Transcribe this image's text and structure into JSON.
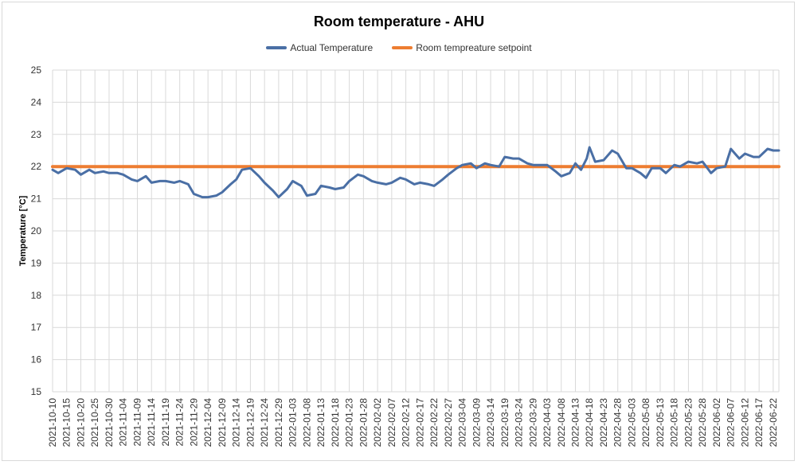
{
  "chart_data": {
    "type": "line",
    "title": "Room temperature - AHU",
    "xlabel": "",
    "ylabel": "Temperature [°C]",
    "ylim": [
      15,
      25
    ],
    "yticks": [
      15,
      16,
      17,
      18,
      19,
      20,
      21,
      22,
      23,
      24,
      25
    ],
    "grid": true,
    "legend_position": "top",
    "x_tick_labels": [
      "2021-10-10",
      "2021-10-15",
      "2021-10-20",
      "2021-10-25",
      "2021-10-30",
      "2021-11-04",
      "2021-11-09",
      "2021-11-14",
      "2021-11-19",
      "2021-11-24",
      "2021-11-29",
      "2021-12-04",
      "2021-12-09",
      "2021-12-14",
      "2021-12-19",
      "2021-12-24",
      "2021-12-29",
      "2022-01-03",
      "2022-01-08",
      "2022-01-13",
      "2022-01-18",
      "2022-01-23",
      "2022-01-28",
      "2022-02-02",
      "2022-02-07",
      "2022-02-12",
      "2022-02-17",
      "2022-02-22",
      "2022-02-27",
      "2022-03-04",
      "2022-03-09",
      "2022-03-14",
      "2022-03-19",
      "2022-03-24",
      "2022-03-29",
      "2022-04-03",
      "2022-04-08",
      "2022-04-13",
      "2022-04-18",
      "2022-04-23",
      "2022-04-28",
      "2022-05-03",
      "2022-05-08",
      "2022-05-13",
      "2022-05-18",
      "2022-05-23",
      "2022-05-28",
      "2022-06-02",
      "2022-06-07",
      "2022-06-12",
      "2022-06-17",
      "2022-06-22"
    ],
    "series": [
      {
        "name": "Actual Temperature",
        "color": "#4a6fa5",
        "x": [
          "2021-10-10",
          "2021-10-12",
          "2021-10-15",
          "2021-10-18",
          "2021-10-20",
          "2021-10-23",
          "2021-10-25",
          "2021-10-28",
          "2021-10-30",
          "2021-11-02",
          "2021-11-04",
          "2021-11-07",
          "2021-11-09",
          "2021-11-12",
          "2021-11-14",
          "2021-11-17",
          "2021-11-19",
          "2021-11-22",
          "2021-11-24",
          "2021-11-27",
          "2021-11-29",
          "2021-12-02",
          "2021-12-04",
          "2021-12-07",
          "2021-12-09",
          "2021-12-12",
          "2021-12-14",
          "2021-12-16",
          "2021-12-19",
          "2021-12-22",
          "2021-12-24",
          "2021-12-27",
          "2021-12-29",
          "2022-01-01",
          "2022-01-03",
          "2022-01-06",
          "2022-01-08",
          "2022-01-11",
          "2022-01-13",
          "2022-01-16",
          "2022-01-18",
          "2022-01-21",
          "2022-01-23",
          "2022-01-26",
          "2022-01-28",
          "2022-01-31",
          "2022-02-02",
          "2022-02-05",
          "2022-02-07",
          "2022-02-10",
          "2022-02-12",
          "2022-02-15",
          "2022-02-17",
          "2022-02-20",
          "2022-02-22",
          "2022-02-25",
          "2022-02-27",
          "2022-03-02",
          "2022-03-04",
          "2022-03-07",
          "2022-03-09",
          "2022-03-12",
          "2022-03-14",
          "2022-03-17",
          "2022-03-19",
          "2022-03-22",
          "2022-03-24",
          "2022-03-27",
          "2022-03-29",
          "2022-04-01",
          "2022-04-03",
          "2022-04-06",
          "2022-04-08",
          "2022-04-11",
          "2022-04-13",
          "2022-04-15",
          "2022-04-17",
          "2022-04-18",
          "2022-04-20",
          "2022-04-23",
          "2022-04-26",
          "2022-04-28",
          "2022-05-01",
          "2022-05-03",
          "2022-05-06",
          "2022-05-08",
          "2022-05-10",
          "2022-05-13",
          "2022-05-15",
          "2022-05-18",
          "2022-05-20",
          "2022-05-23",
          "2022-05-26",
          "2022-05-28",
          "2022-05-31",
          "2022-06-02",
          "2022-06-05",
          "2022-06-07",
          "2022-06-10",
          "2022-06-12",
          "2022-06-15",
          "2022-06-17",
          "2022-06-20",
          "2022-06-22",
          "2022-06-24"
        ],
        "y": [
          21.9,
          21.8,
          21.95,
          21.9,
          21.75,
          21.9,
          21.8,
          21.85,
          21.8,
          21.8,
          21.75,
          21.6,
          21.55,
          21.7,
          21.5,
          21.55,
          21.55,
          21.5,
          21.55,
          21.45,
          21.15,
          21.05,
          21.05,
          21.1,
          21.2,
          21.45,
          21.6,
          21.9,
          21.95,
          21.7,
          21.5,
          21.25,
          21.05,
          21.3,
          21.55,
          21.4,
          21.1,
          21.15,
          21.4,
          21.35,
          21.3,
          21.35,
          21.55,
          21.75,
          21.7,
          21.55,
          21.5,
          21.45,
          21.5,
          21.65,
          21.6,
          21.45,
          21.5,
          21.45,
          21.4,
          21.6,
          21.75,
          21.95,
          22.05,
          22.1,
          21.95,
          22.1,
          22.05,
          22.0,
          22.3,
          22.25,
          22.25,
          22.1,
          22.05,
          22.05,
          22.05,
          21.85,
          21.7,
          21.8,
          22.1,
          21.9,
          22.25,
          22.6,
          22.15,
          22.2,
          22.5,
          22.4,
          21.95,
          21.95,
          21.8,
          21.65,
          21.95,
          21.95,
          21.8,
          22.05,
          22.0,
          22.15,
          22.1,
          22.15,
          21.8,
          21.95,
          22.0,
          22.55,
          22.25,
          22.4,
          22.3,
          22.3,
          22.55,
          22.5,
          22.5
        ]
      },
      {
        "name": "Room tempreature setpoint",
        "color": "#ed7d31",
        "x": [
          "2021-10-10",
          "2022-06-24"
        ],
        "y": [
          22,
          22
        ]
      }
    ]
  }
}
